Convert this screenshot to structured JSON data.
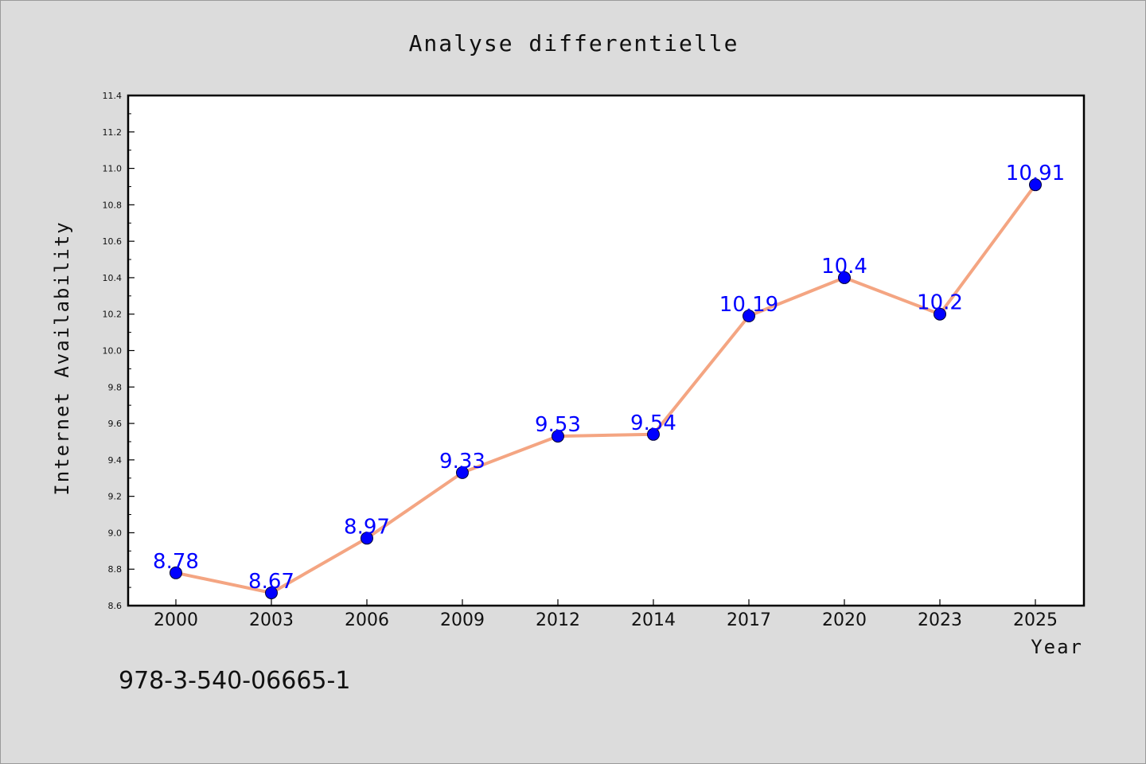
{
  "chart_data": {
    "type": "line",
    "title": "Analyse differentielle",
    "xlabel": "Year",
    "ylabel": "Internet Availability",
    "categories": [
      "2000",
      "2003",
      "2006",
      "2009",
      "2012",
      "2014",
      "2017",
      "2020",
      "2023",
      "2025"
    ],
    "series": [
      {
        "values": [
          8.78,
          8.67,
          8.97,
          9.33,
          9.53,
          9.54,
          10.19,
          10.4,
          10.2,
          10.91
        ],
        "data_labels": [
          "8.78",
          "8.67",
          "8.97",
          "9.33",
          "9.53",
          "9.54",
          "10.19",
          "10.4",
          "10.2",
          "10.91"
        ]
      }
    ],
    "ylim": [
      8.6,
      11.4
    ],
    "yticks": [
      "8.6",
      "8.8",
      "9.0",
      "9.2",
      "9.4",
      "9.6",
      "9.8",
      "10.0",
      "10.2",
      "10.4",
      "10.6",
      "10.8",
      "11.0",
      "11.2",
      "11.4"
    ],
    "grid": false,
    "colors": {
      "line": "#f4a582",
      "marker": "#0000ff",
      "label": "#0000ff",
      "plot_bg": "#ffffff",
      "figure_bg": "#dcdcdc"
    }
  },
  "footer": {
    "identifier": "978-3-540-06665-1"
  }
}
